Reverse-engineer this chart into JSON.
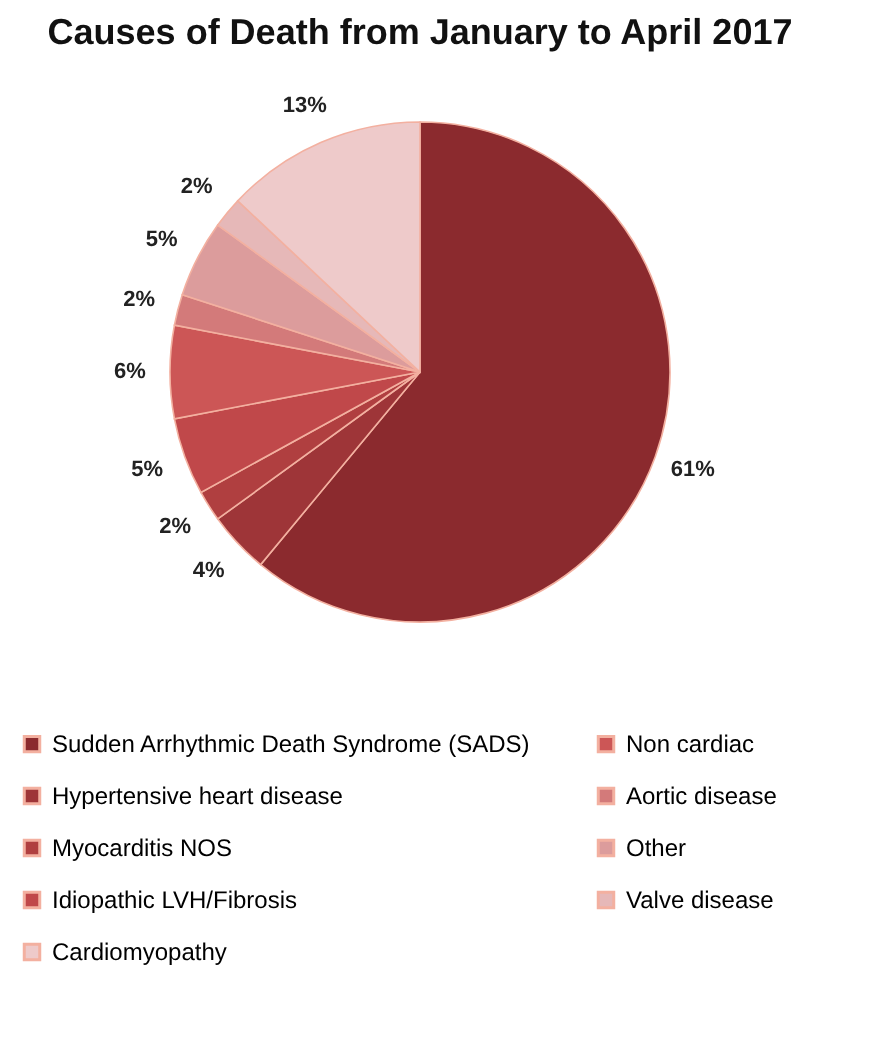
{
  "chart_data": {
    "type": "pie",
    "title": "Causes of Death from January to April 2017",
    "categories": [
      "Sudden Arrhythmic Death Syndrome (SADS)",
      "Hypertensive heart disease",
      "Myocarditis NOS",
      "Idiopathic LVH/Fibrosis",
      "Non cardiac",
      "Aortic disease",
      "Other",
      "Valve disease",
      "Cardiomyopathy"
    ],
    "values": [
      61,
      4,
      2,
      5,
      6,
      2,
      5,
      2,
      13
    ],
    "value_labels": [
      "61%",
      "4%",
      "2%",
      "5%",
      "6%",
      "2%",
      "5%",
      "2%",
      "13%"
    ],
    "colors": [
      "#8b2a2e",
      "#9e3538",
      "#b03f40",
      "#c0484a",
      "#cc5656",
      "#d37a7a",
      "#dc9c9c",
      "#e6b8b8",
      "#eecaca"
    ],
    "legend": "bottom"
  }
}
